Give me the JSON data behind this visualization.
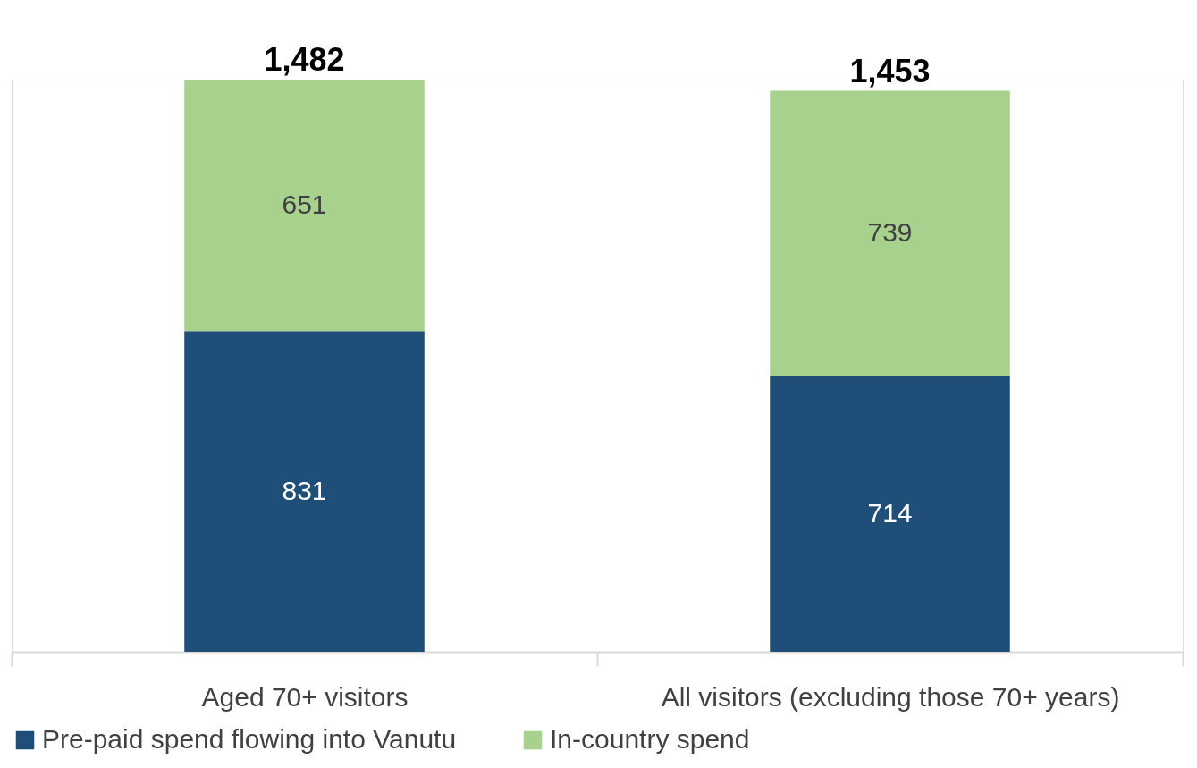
{
  "chart_data": {
    "type": "bar",
    "stacked": true,
    "categories": [
      "Aged 70+ visitors",
      "All visitors (excluding those 70+ years)"
    ],
    "series": [
      {
        "name": "Pre-paid spend flowing into Vanutu",
        "color": "#1f4e79",
        "values": [
          831,
          714
        ]
      },
      {
        "name": "In-country spend",
        "color": "#a9d18e",
        "values": [
          651,
          739
        ]
      }
    ],
    "totals": [
      "1,482",
      "1,453"
    ],
    "data_labels": true,
    "legend": "bottom",
    "grid": false
  }
}
